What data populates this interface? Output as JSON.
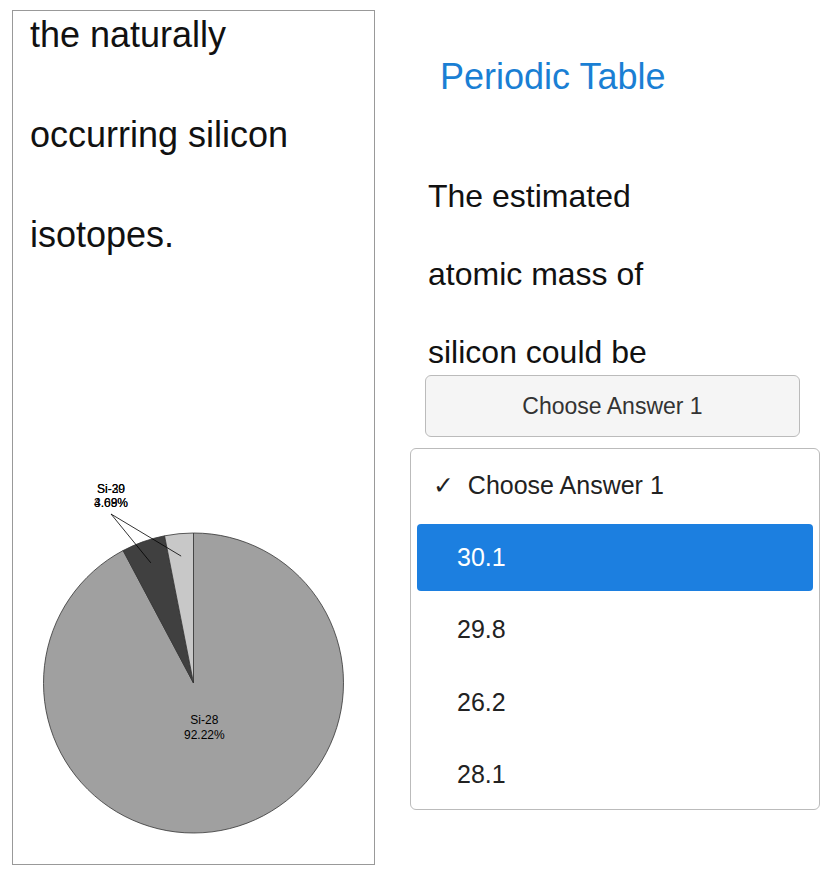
{
  "chart_data": {
    "type": "pie",
    "categories": [
      "Si-28",
      "Si-29",
      "Si-30"
    ],
    "values": [
      92.22,
      4.68,
      3.09
    ],
    "value_labels": [
      "92.22%",
      "4.68%",
      "3.09%"
    ],
    "colors": [
      "#a0a0a0",
      "#404040",
      "#c8c8c8"
    ],
    "data_labels": true,
    "annotations": [
      {
        "text": "the naturally"
      },
      {
        "text": "occurring silicon"
      },
      {
        "text": "isotopes."
      },
      {
        "text": "Periodic Table",
        "color": "#1a7fd4"
      },
      {
        "text": "The estimated"
      },
      {
        "text": "atomic mass of"
      },
      {
        "text": "silicon could be"
      },
      {
        "text": "Choose Answer 1"
      },
      {
        "text": "✓  Choose Answer 1"
      },
      {
        "text": "30.1",
        "color": "#ffffff",
        "background": "#1c7fe0"
      },
      {
        "text": "29.8"
      },
      {
        "text": "26.2"
      },
      {
        "text": "28.1"
      }
    ]
  }
}
